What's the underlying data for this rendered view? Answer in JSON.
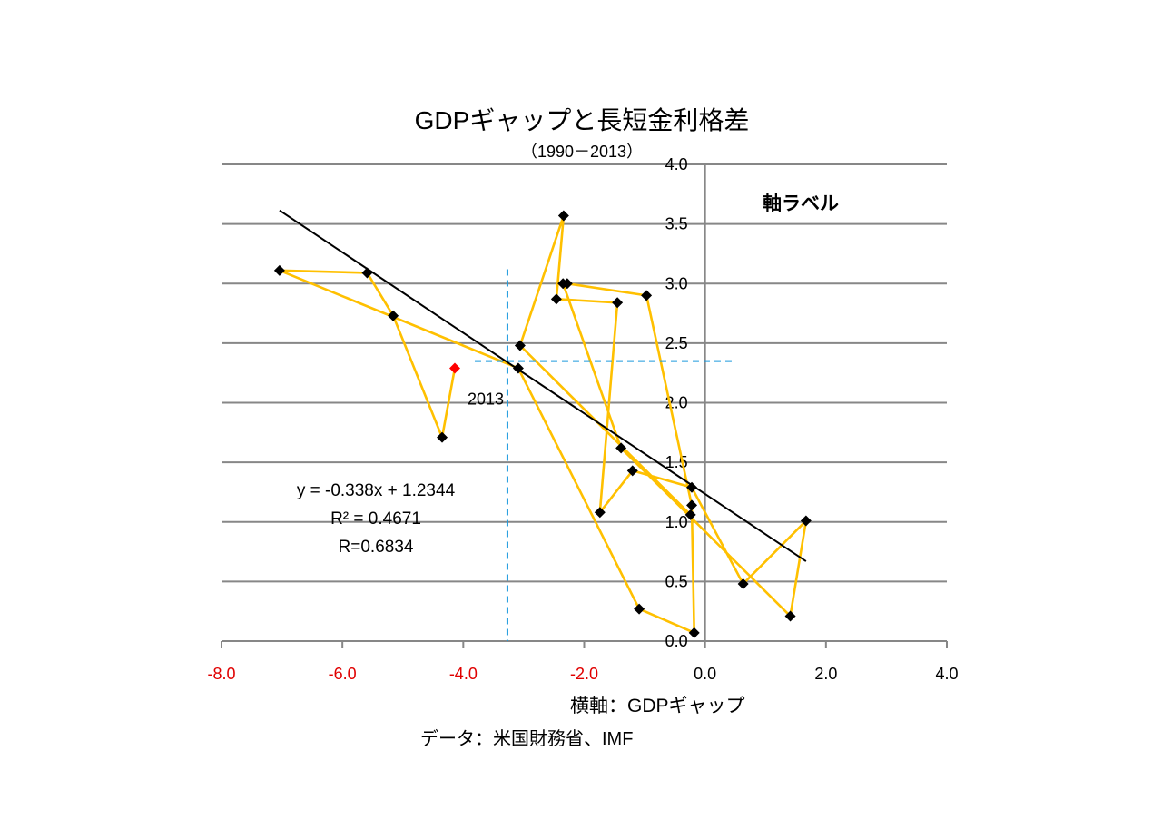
{
  "chart_data": {
    "type": "scatter",
    "title": "GDPギャップと長短金利格差",
    "subtitle": "（1990－2013）",
    "xlabel": "横軸：GDPギャップ",
    "ylabel": "軸ラベル",
    "source": "データ：米国財務省、IMF",
    "xlim": [
      -8,
      4
    ],
    "ylim": [
      0,
      4
    ],
    "grid": "horizontal",
    "x_ticks": [
      {
        "value": -8,
        "label": "-8.0",
        "color": "#E00000"
      },
      {
        "value": -6,
        "label": "-6.0",
        "color": "#E00000"
      },
      {
        "value": -4,
        "label": "-4.0",
        "color": "#E00000"
      },
      {
        "value": -2,
        "label": "-2.0",
        "color": "#E00000"
      },
      {
        "value": 0,
        "label": "0.0",
        "color": "#000000"
      },
      {
        "value": 2,
        "label": "2.0",
        "color": "#000000"
      },
      {
        "value": 4,
        "label": "4.0",
        "color": "#000000"
      }
    ],
    "y_ticks": [
      {
        "value": 0,
        "label": "0.0"
      },
      {
        "value": 0.5,
        "label": "0.5"
      },
      {
        "value": 1,
        "label": "1.0"
      },
      {
        "value": 1.5,
        "label": "1.5"
      },
      {
        "value": 2,
        "label": "2.0"
      },
      {
        "value": 2.5,
        "label": "2.5"
      },
      {
        "value": 3,
        "label": "3.0"
      },
      {
        "value": 3.5,
        "label": "3.5"
      },
      {
        "value": 4,
        "label": "4.0"
      }
    ],
    "series": [
      {
        "line_color": "#FFC000",
        "marker": "diamond",
        "marker_color": "#000000",
        "points": [
          {
            "x": -0.24,
            "y": 1.06
          },
          {
            "x": -3.06,
            "y": 2.48
          },
          {
            "x": -2.34,
            "y": 3.57
          },
          {
            "x": -2.46,
            "y": 2.87
          },
          {
            "x": -1.45,
            "y": 2.84
          },
          {
            "x": -1.74,
            "y": 1.08
          },
          {
            "x": -1.2,
            "y": 1.43
          },
          {
            "x": -0.22,
            "y": 1.29
          },
          {
            "x": 0.63,
            "y": 0.48
          },
          {
            "x": 1.67,
            "y": 1.01
          },
          {
            "x": 1.41,
            "y": 0.21
          },
          {
            "x": -1.39,
            "y": 1.62
          },
          {
            "x": -2.35,
            "y": 3.0
          },
          {
            "x": -2.28,
            "y": 3.0
          },
          {
            "x": -0.97,
            "y": 2.9
          },
          {
            "x": -0.22,
            "y": 1.14
          },
          {
            "x": -0.18,
            "y": 0.07
          },
          {
            "x": -1.09,
            "y": 0.27
          },
          {
            "x": -3.09,
            "y": 2.29
          },
          {
            "x": -7.04,
            "y": 3.11
          },
          {
            "x": -5.59,
            "y": 3.09
          },
          {
            "x": -5.16,
            "y": 2.73
          },
          {
            "x": -4.35,
            "y": 1.71
          },
          {
            "x": -4.14,
            "y": 2.29,
            "color": "#FF0000",
            "label": "2013"
          }
        ]
      }
    ],
    "trendline": {
      "type": "linear",
      "slope": -0.338,
      "intercept": 1.2344,
      "color": "#000000",
      "equation": "y = -0.338x + 1.2344",
      "r_squared": "R² = 0.4671",
      "r": "R=0.6834"
    },
    "reference_lines": [
      {
        "orientation": "vertical",
        "x": -3.27,
        "y_range": [
          0,
          3.12
        ],
        "style": "dashed",
        "color": "#1F9BDE"
      },
      {
        "orientation": "horizontal",
        "y": 2.35,
        "x_range": [
          -3.81,
          0.44
        ],
        "style": "dashed",
        "color": "#1F9BDE"
      }
    ]
  }
}
